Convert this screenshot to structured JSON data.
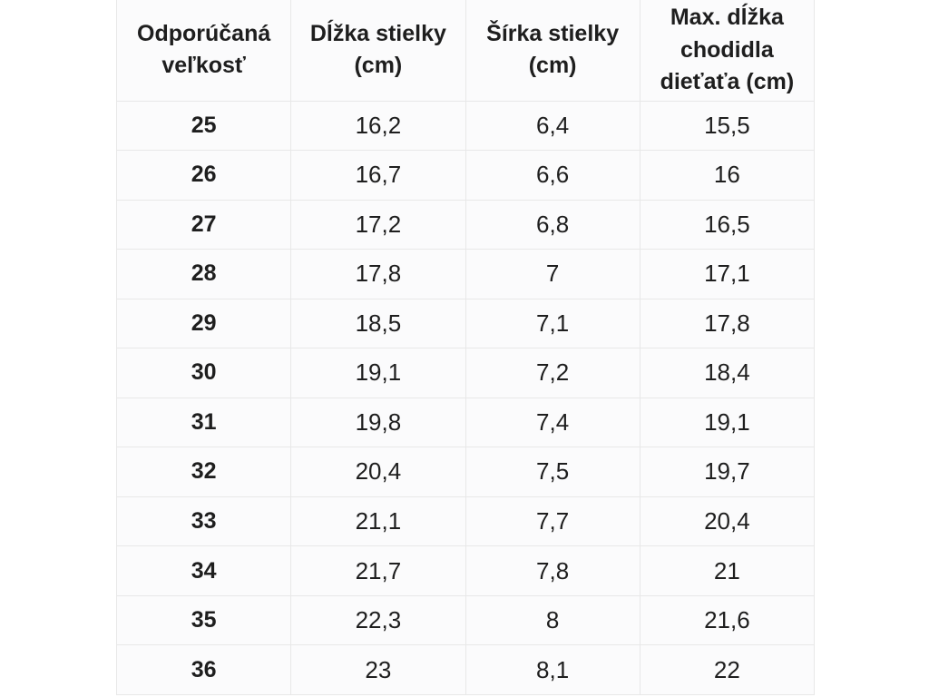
{
  "table": {
    "columns": [
      "Odporúčaná veľkosť",
      "Dĺžka stielky (cm)",
      "Šírka stielky (cm)",
      "Max. dĺžka chodidla dieťaťa (cm)"
    ],
    "rows": [
      [
        "25",
        "16,2",
        "6,4",
        "15,5"
      ],
      [
        "26",
        "16,7",
        "6,6",
        "16"
      ],
      [
        "27",
        "17,2",
        "6,8",
        "16,5"
      ],
      [
        "28",
        "17,8",
        "7",
        "17,1"
      ],
      [
        "29",
        "18,5",
        "7,1",
        "17,8"
      ],
      [
        "30",
        "19,1",
        "7,2",
        "18,4"
      ],
      [
        "31",
        "19,8",
        "7,4",
        "19,1"
      ],
      [
        "32",
        "20,4",
        "7,5",
        "19,7"
      ],
      [
        "33",
        "21,1",
        "7,7",
        "20,4"
      ],
      [
        "34",
        "21,7",
        "7,8",
        "21"
      ],
      [
        "35",
        "22,3",
        "8",
        "21,6"
      ],
      [
        "36",
        "23",
        "8,1",
        "22"
      ]
    ]
  },
  "colors": {
    "page_background": "#ffffff",
    "cell_background": "#fbfbfc",
    "border": "#e8e8e8",
    "text": "#1e1e1e"
  }
}
